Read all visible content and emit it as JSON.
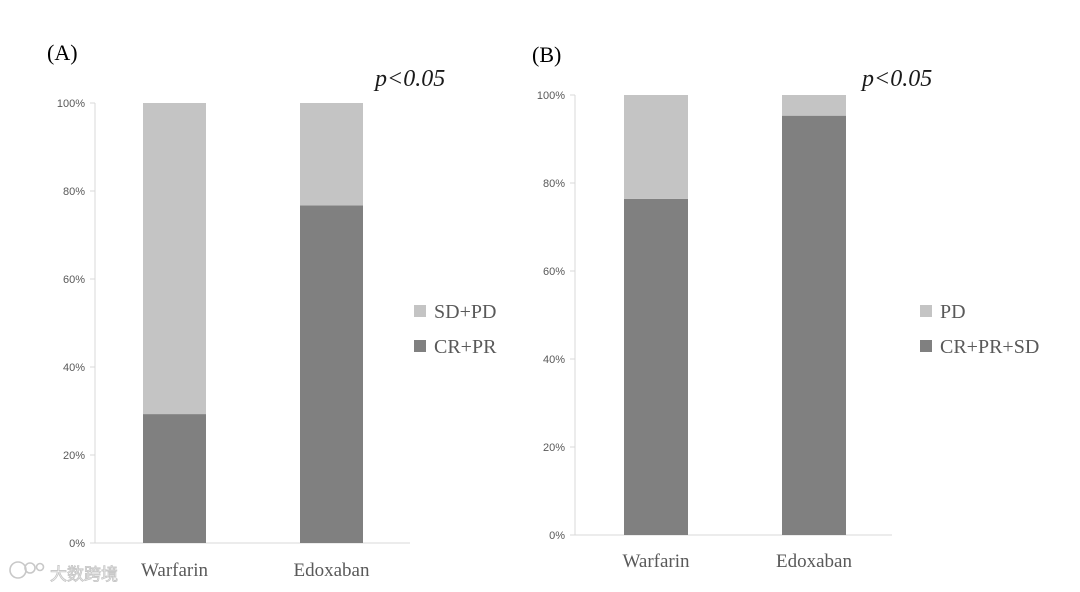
{
  "chart_data": [
    {
      "type": "bar",
      "stacked": true,
      "panel_label": "(A)",
      "annotation": "p<0.05",
      "categories": [
        "Warfarin",
        "Edoxaban"
      ],
      "series": [
        {
          "name": "CR+PR",
          "values": [
            29.3,
            76.7
          ],
          "color": "#808080"
        },
        {
          "name": "SD+PD",
          "values": [
            70.7,
            23.3
          ],
          "color": "#c4c4c4"
        }
      ],
      "legend_order": [
        "SD+PD",
        "CR+PR"
      ],
      "ylim": [
        0,
        100
      ],
      "yticks": [
        "0%",
        "20%",
        "40%",
        "60%",
        "80%",
        "100%"
      ],
      "legend": "right",
      "grid": false
    },
    {
      "type": "bar",
      "stacked": true,
      "panel_label": "(B)",
      "annotation": "p<0.05",
      "categories": [
        "Warfarin",
        "Edoxaban"
      ],
      "series": [
        {
          "name": "CR+PR+SD",
          "values": [
            76.4,
            95.3
          ],
          "color": "#808080"
        },
        {
          "name": "PD",
          "values": [
            23.6,
            4.7
          ],
          "color": "#c4c4c4"
        }
      ],
      "legend_order": [
        "PD",
        "CR+PR+SD"
      ],
      "ylim": [
        0,
        100
      ],
      "yticks": [
        "0%",
        "20%",
        "40%",
        "60%",
        "80%",
        "100%"
      ],
      "legend": "right",
      "grid": false
    }
  ],
  "watermark": "大数跨境"
}
